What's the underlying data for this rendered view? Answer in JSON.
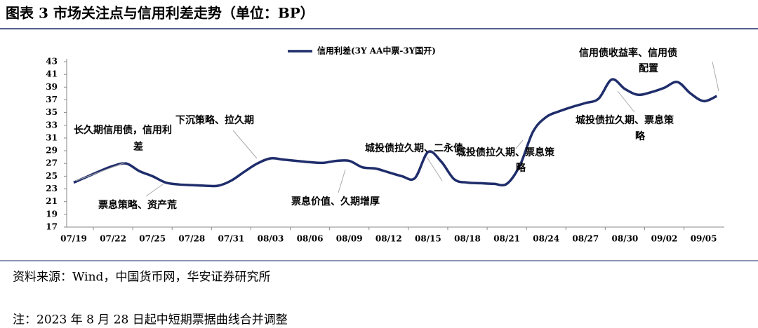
{
  "chart_data": {
    "type": "line",
    "title": "图表 3 市场关注点与信用利差走势（单位：BP）",
    "categories": [
      "07/19",
      null,
      null,
      "07/22",
      null,
      null,
      "07/25",
      null,
      null,
      "07/28",
      null,
      null,
      "07/31",
      null,
      null,
      "08/03",
      null,
      null,
      "08/06",
      null,
      null,
      "08/09",
      null,
      null,
      "08/12",
      null,
      null,
      "08/15",
      null,
      null,
      "08/18",
      null,
      null,
      "08/21",
      null,
      null,
      "08/24",
      null,
      null,
      "08/27",
      null,
      null,
      "08/30",
      null,
      null,
      "09/02",
      null,
      null,
      "09/05",
      null
    ],
    "series": [
      {
        "name": "信用利差(3Y AA中票-3Y国开)",
        "color": "#1f2d6b",
        "values": [
          24.0,
          24.9,
          25.8,
          26.6,
          27.0,
          25.8,
          25.0,
          24.0,
          23.7,
          23.6,
          23.5,
          23.5,
          24.3,
          25.7,
          27.0,
          27.8,
          27.6,
          27.4,
          27.2,
          27.1,
          27.4,
          27.4,
          26.4,
          26.2,
          25.6,
          25.0,
          24.7,
          28.8,
          27.3,
          24.5,
          24.0,
          23.9,
          23.8,
          23.8,
          26.7,
          32.0,
          34.3,
          35.2,
          35.9,
          36.5,
          37.2,
          40.2,
          38.7,
          37.8,
          38.2,
          38.9,
          39.8,
          38.0,
          36.8,
          37.6
        ]
      }
    ],
    "ylim": [
      17,
      43
    ],
    "yticks": [
      17,
      19,
      21,
      23,
      25,
      27,
      29,
      31,
      33,
      35,
      37,
      39,
      41,
      43
    ],
    "grid": false,
    "legend": "top",
    "annotations": [
      {
        "lines": [
          "长久期信用债，信用利",
          "差"
        ]
      },
      {
        "lines": [
          "下沉策略、拉久期"
        ]
      },
      {
        "lines": [
          "票息策略、资产荒"
        ]
      },
      {
        "lines": [
          "票息价值、久期增厚"
        ]
      },
      {
        "lines": [
          "城投债拉久期、二永债"
        ]
      },
      {
        "lines": [
          "城投债拉久期、票息策",
          "略"
        ]
      },
      {
        "lines": [
          "信用债收益率、信用债",
          "配置"
        ]
      },
      {
        "lines": [
          "城投债拉久期、票息策",
          "略"
        ]
      }
    ]
  },
  "source": "资料来源：Wind，中国货币网，华安证券研究所",
  "note": "注：2023 年 8 月 28 日起中短期票据曲线合并调整"
}
